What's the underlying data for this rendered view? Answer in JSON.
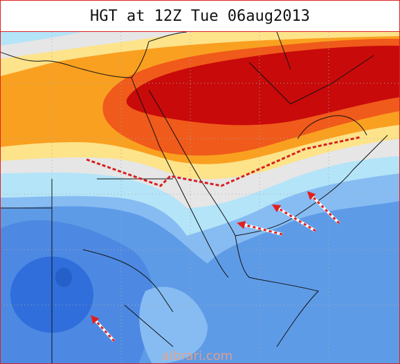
{
  "header": {
    "title": "HGT at 12Z Tue 06aug2013"
  },
  "watermark": "albrari.com"
}
